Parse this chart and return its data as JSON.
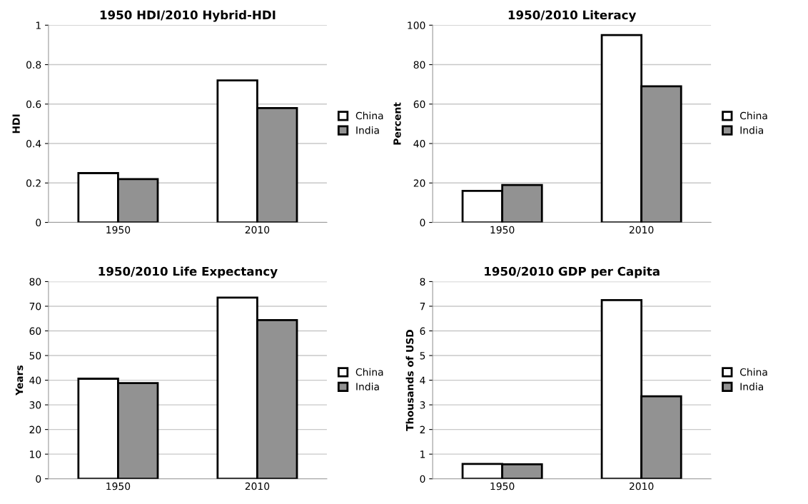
{
  "chart_data": [
    {
      "type": "bar",
      "title": "1950 HDI/2010 Hybrid-HDI",
      "ylabel": "HDI",
      "categories": [
        "1950",
        "2010"
      ],
      "ylim": [
        0,
        1
      ],
      "yticks": [
        0,
        {
          "value": 0.2,
          "label": "0.2"
        },
        {
          "value": 0.4,
          "label": "0.4"
        },
        {
          "value": 0.6,
          "label": "0.6"
        },
        {
          "value": 0.8,
          "label": "0.8"
        },
        1
      ],
      "grid": "y",
      "legend": "right",
      "series": [
        {
          "name": "China",
          "color": "#ffffff",
          "values": [
            0.25,
            0.72
          ]
        },
        {
          "name": "India",
          "color": "#929292",
          "values": [
            0.22,
            0.58
          ]
        }
      ]
    },
    {
      "type": "bar",
      "title": "1950/2010 Literacy",
      "ylabel": "Percent",
      "categories": [
        "1950",
        "2010"
      ],
      "ylim": [
        0,
        100
      ],
      "yticks": [
        0,
        20,
        40,
        60,
        80,
        100
      ],
      "grid": "y",
      "legend": "right",
      "series": [
        {
          "name": "China",
          "color": "#ffffff",
          "values": [
            16,
            95
          ]
        },
        {
          "name": "India",
          "color": "#929292",
          "values": [
            19,
            69
          ]
        }
      ]
    },
    {
      "type": "bar",
      "title": "1950/2010 Life Expectancy",
      "ylabel": "Years",
      "categories": [
        "1950",
        "2010"
      ],
      "ylim": [
        0,
        80
      ],
      "yticks": [
        0,
        10,
        20,
        30,
        40,
        50,
        60,
        70,
        80
      ],
      "grid": "y",
      "legend": "right",
      "series": [
        {
          "name": "China",
          "color": "#ffffff",
          "values": [
            40.6,
            73.5
          ]
        },
        {
          "name": "India",
          "color": "#929292",
          "values": [
            38.8,
            64.4
          ]
        }
      ]
    },
    {
      "type": "bar",
      "title": "1950/2010 GDP per Capita",
      "ylabel": "Thousands of USD",
      "categories": [
        "1950",
        "2010"
      ],
      "ylim": [
        0,
        8
      ],
      "yticks": [
        0,
        1,
        2,
        3,
        4,
        5,
        6,
        7,
        8
      ],
      "grid": "y",
      "legend": "right",
      "series": [
        {
          "name": "China",
          "color": "#ffffff",
          "values": [
            0.6,
            7.25
          ]
        },
        {
          "name": "India",
          "color": "#929292",
          "values": [
            0.59,
            3.35
          ]
        }
      ]
    }
  ]
}
